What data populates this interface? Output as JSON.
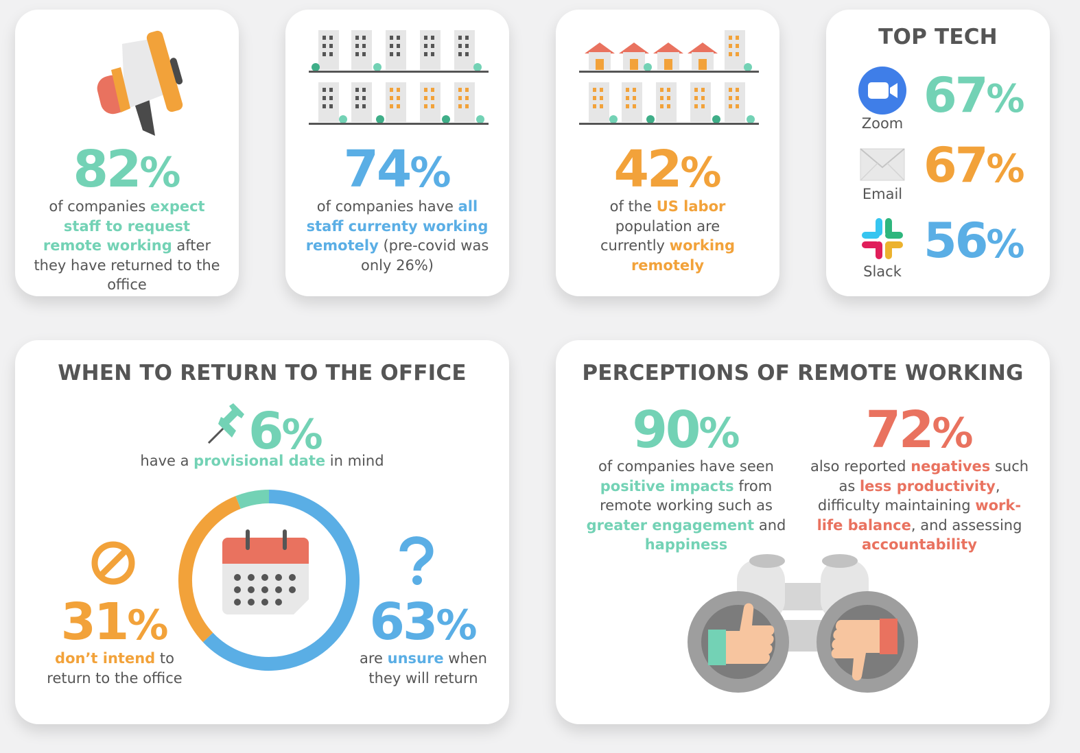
{
  "cards": {
    "expect": {
      "value": "82",
      "desc": {
        "p1": "of companies ",
        "hl": "expect staff to request remote working",
        "p2": " after they have returned to the office"
      }
    },
    "staff": {
      "value": "74",
      "desc": {
        "p1": "of companies have ",
        "hl": "all staff currenty working remotely",
        "p2": " (pre-covid was only 26%)"
      }
    },
    "labor": {
      "value": "42",
      "desc": {
        "p1": "of the ",
        "hl1": "US labor",
        "p2": " population are currently ",
        "hl2": "working remotely"
      }
    },
    "top_tech": {
      "title": "TOP TECH",
      "items": [
        {
          "label": "Zoom",
          "value": "67",
          "icon": "zoom-icon",
          "color": "#73d2b5"
        },
        {
          "label": "Email",
          "value": "67",
          "icon": "email-icon",
          "color": "#f2a23a"
        },
        {
          "label": "Slack",
          "value": "56",
          "icon": "slack-icon",
          "color": "#5aaee5"
        }
      ]
    },
    "return_office": {
      "title": "WHEN TO RETURN TO THE OFFICE",
      "provisional": {
        "value": "6",
        "p1": "have a ",
        "hl": "provisional date",
        "p2": " in mind"
      },
      "dont": {
        "value": "31",
        "hl": "don’t intend",
        "p1": " to return to the office"
      },
      "unsure": {
        "value": "63",
        "p1": "are ",
        "hl": "unsure",
        "p2": " when they will return"
      }
    },
    "perceptions": {
      "title": "PERCEPTIONS OF REMOTE WORKING",
      "positive": {
        "value": "90",
        "p1": "of companies have seen ",
        "hl1": "positive impacts",
        "p2": " from remote working such as ",
        "hl2": "greater engagement",
        "p3": " and ",
        "hl3": "happiness"
      },
      "negative": {
        "value": "72",
        "p1": "also reported ",
        "hl1": "negatives",
        "p2": " such as ",
        "hl2": "less productivity",
        "p3": ", difficulty maintaining ",
        "hl3": "work-life balance",
        "p4": ", and assessing ",
        "hl4": "accountability"
      }
    }
  },
  "pct_sign": "%",
  "return_chart": {
    "segments": [
      {
        "name": "unsure",
        "value": 63,
        "color": "#5aaee5"
      },
      {
        "name": "dont_intend",
        "value": 31,
        "color": "#f2a23a"
      },
      {
        "name": "provisional",
        "value": 6,
        "color": "#73d2b5"
      }
    ]
  },
  "colors": {
    "teal": "#73d2b5",
    "blue": "#5aaee5",
    "orange": "#f2a23a",
    "red": "#e9725f",
    "text": "#555555",
    "background": "#f1f1f2"
  }
}
